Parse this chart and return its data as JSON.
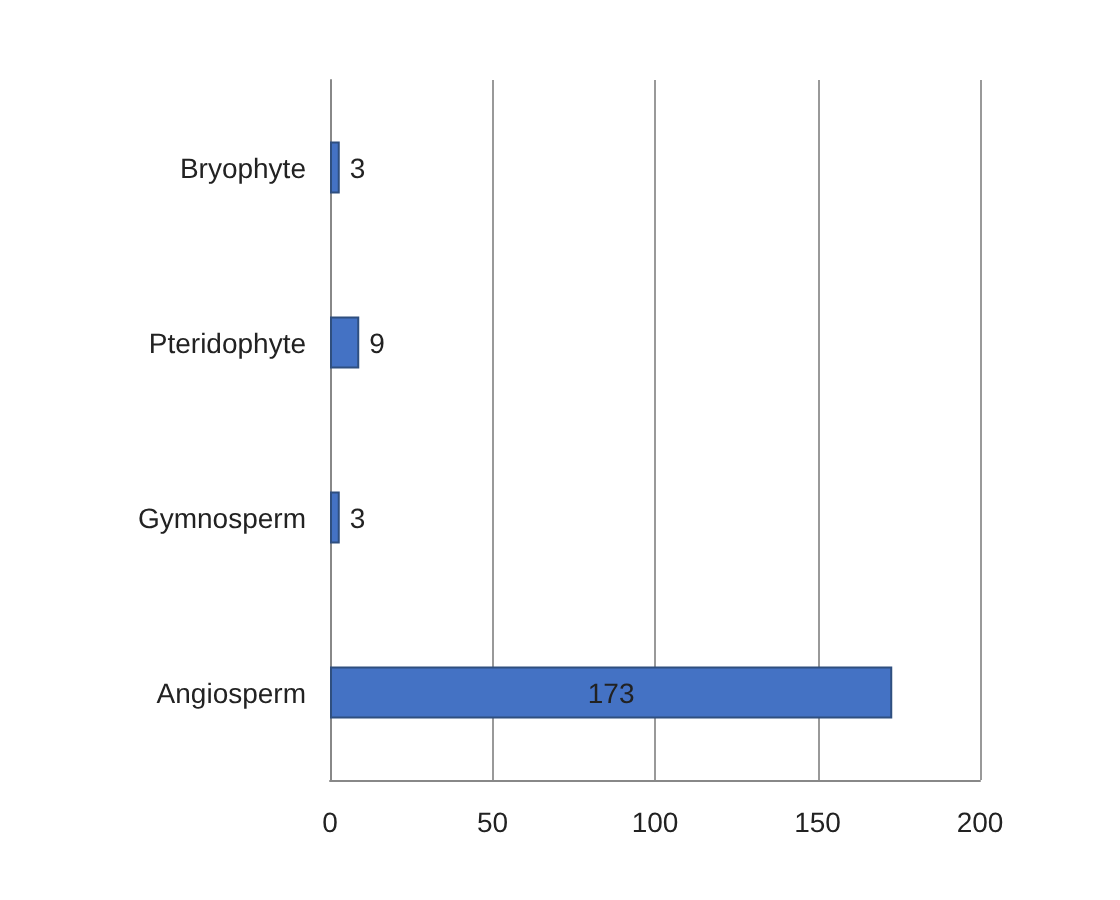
{
  "chart_data": {
    "type": "bar",
    "orientation": "horizontal",
    "categories": [
      "Bryophyte",
      "Pteridophyte",
      "Gymnosperm",
      "Angiosperm"
    ],
    "values": [
      3,
      9,
      3,
      173
    ],
    "color": "#4472c4",
    "xlim": [
      0,
      200
    ],
    "xticks": [
      0,
      50,
      100,
      150,
      200
    ],
    "grid": "x",
    "data_labels": true
  }
}
